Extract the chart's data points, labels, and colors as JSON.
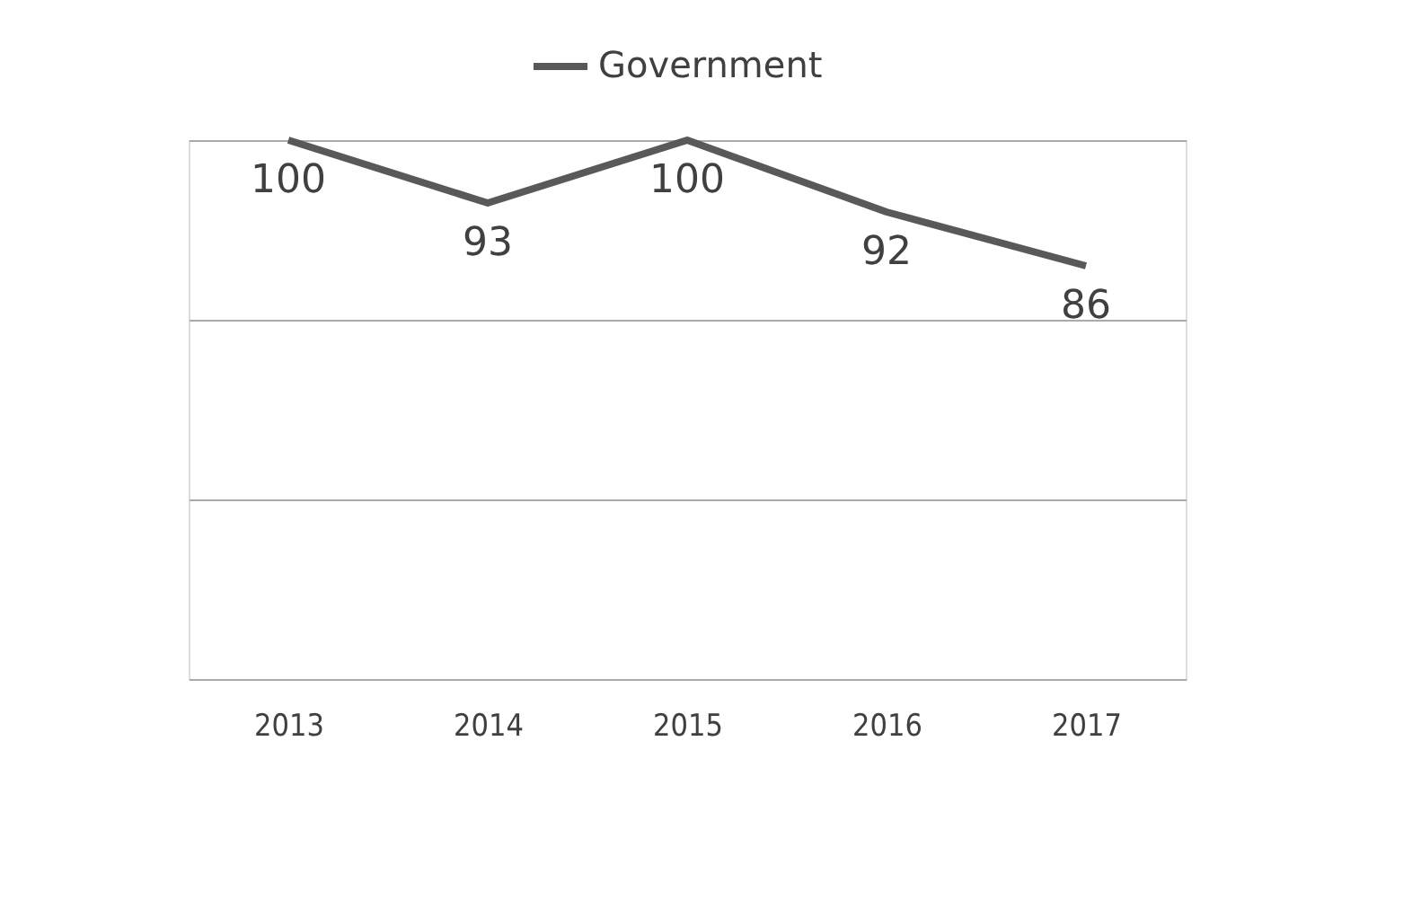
{
  "chart_data": {
    "type": "line",
    "categories": [
      "2013",
      "2014",
      "2015",
      "2016",
      "2017"
    ],
    "series": [
      {
        "name": "Government",
        "color": "#595959",
        "values": [
          100,
          93,
          100,
          92,
          86
        ]
      }
    ],
    "ylim": [
      40,
      100
    ],
    "yticks": [
      {
        "value": 40,
        "label": null
      },
      {
        "value": 60,
        "label": null
      },
      {
        "value": 80,
        "label": null
      },
      {
        "value": 100,
        "label": null
      }
    ],
    "tick_labels": "x",
    "grid": "y",
    "legend": "top",
    "data_labels": true,
    "marker": "none",
    "line_style": "solid"
  }
}
